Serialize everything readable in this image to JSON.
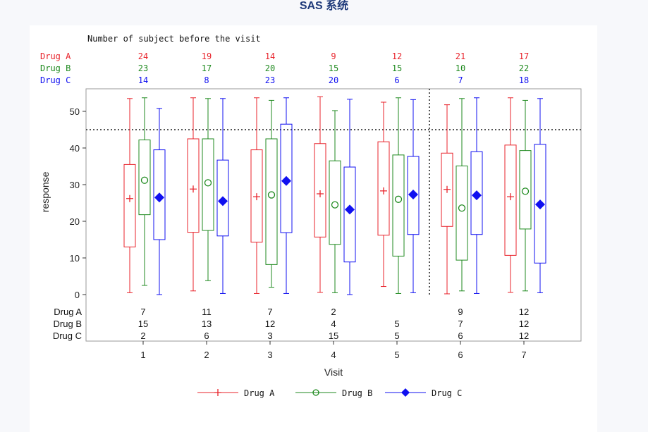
{
  "page": {
    "title": "SAS 系统"
  },
  "chart_data": {
    "type": "box",
    "header_label": "Number of subject before the visit",
    "xlabel": "Visit",
    "ylabel": "response",
    "categories": [
      "1",
      "2",
      "3",
      "4",
      "5",
      "6",
      "7"
    ],
    "ylim": [
      0,
      57
    ],
    "yticks": [
      0,
      10,
      20,
      30,
      40,
      50
    ],
    "reference_line_y": 45,
    "reference_line_x_between": [
      "5",
      "6"
    ],
    "series": [
      {
        "name": "Drug A",
        "color": "#e8232b",
        "marker": "plus",
        "boxes": [
          {
            "min": 0.5,
            "q1": 13,
            "median": 26,
            "q3": 35.5,
            "max": 53.5,
            "mean": 26.2
          },
          {
            "min": 1,
            "q1": 17,
            "median": 29,
            "q3": 42.5,
            "max": 53.7,
            "mean": 28.8
          },
          {
            "min": 0.3,
            "q1": 14.3,
            "median": 27,
            "q3": 39.5,
            "max": 53.7,
            "mean": 26.7
          },
          {
            "min": 0.6,
            "q1": 15.7,
            "median": 27.5,
            "q3": 41.2,
            "max": 54,
            "mean": 27.5
          },
          {
            "min": 2.2,
            "q1": 16.2,
            "median": 28.5,
            "q3": 41.7,
            "max": 52.5,
            "mean": 28.3
          },
          {
            "min": 0.2,
            "q1": 18.6,
            "median": 29,
            "q3": 38.6,
            "max": 51.8,
            "mean": 28.7
          },
          {
            "min": 0.6,
            "q1": 10.7,
            "median": 26.8,
            "q3": 40.8,
            "max": 53.7,
            "mean": 26.7
          }
        ]
      },
      {
        "name": "Drug B",
        "color": "#1f8a1f",
        "marker": "circle",
        "boxes": [
          {
            "min": 2.5,
            "q1": 21.8,
            "median": 31,
            "q3": 42.2,
            "max": 53.7,
            "mean": 31.2
          },
          {
            "min": 3.8,
            "q1": 17.5,
            "median": 30.5,
            "q3": 42.5,
            "max": 53.5,
            "mean": 30.5
          },
          {
            "min": 2,
            "q1": 8.2,
            "median": 27,
            "q3": 42.5,
            "max": 53,
            "mean": 27.2
          },
          {
            "min": 0.5,
            "q1": 13.7,
            "median": 24.5,
            "q3": 36.5,
            "max": 50.2,
            "mean": 24.5
          },
          {
            "min": 0.3,
            "q1": 10.5,
            "median": 26,
            "q3": 38.1,
            "max": 53.7,
            "mean": 26
          },
          {
            "min": 1,
            "q1": 9.4,
            "median": 23.5,
            "q3": 35.1,
            "max": 53.5,
            "mean": 23.6
          },
          {
            "min": 1,
            "q1": 17.9,
            "median": 28,
            "q3": 39.3,
            "max": 53,
            "mean": 28.2
          }
        ]
      },
      {
        "name": "Drug C",
        "color": "#1010f0",
        "marker": "diamond",
        "boxes": [
          {
            "min": 0,
            "q1": 15,
            "median": 26.5,
            "q3": 39.5,
            "max": 50.8,
            "mean": 26.5
          },
          {
            "min": 0.3,
            "q1": 16,
            "median": 25.5,
            "q3": 36.7,
            "max": 53.5,
            "mean": 25.5
          },
          {
            "min": 0.3,
            "q1": 16.9,
            "median": 31,
            "q3": 46.5,
            "max": 53.7,
            "mean": 31
          },
          {
            "min": 0,
            "q1": 8.9,
            "median": 23.2,
            "q3": 34.8,
            "max": 53.3,
            "mean": 23.2
          },
          {
            "min": 0.5,
            "q1": 16.4,
            "median": 27.3,
            "q3": 37.7,
            "max": 53.2,
            "mean": 27.3
          },
          {
            "min": 0.3,
            "q1": 16.4,
            "median": 27,
            "q3": 39,
            "max": 53.7,
            "mean": 27.1
          },
          {
            "min": 0.5,
            "q1": 8.6,
            "median": 24.6,
            "q3": 41,
            "max": 53.5,
            "mean": 24.6
          }
        ]
      }
    ],
    "header_counts": [
      {
        "name": "Drug A",
        "color": "#e8232b",
        "values": [
          "24",
          "19",
          "14",
          "9",
          "12",
          "21",
          "17"
        ]
      },
      {
        "name": "Drug B",
        "color": "#1f8a1f",
        "values": [
          "23",
          "17",
          "20",
          "15",
          "15",
          "10",
          "22"
        ]
      },
      {
        "name": "Drug C",
        "color": "#1010f0",
        "values": [
          "14",
          "8",
          "23",
          "20",
          "6",
          "7",
          "18"
        ]
      }
    ],
    "inner_counts": [
      {
        "name": "Drug A",
        "values": [
          "7",
          "11",
          "7",
          "2",
          "",
          "9",
          "12"
        ]
      },
      {
        "name": "Drug B",
        "values": [
          "15",
          "13",
          "12",
          "4",
          "5",
          "7",
          "12"
        ]
      },
      {
        "name": "Drug C",
        "values": [
          "2",
          "6",
          "3",
          "15",
          "5",
          "6",
          "12"
        ]
      }
    ],
    "legend": {
      "position": "bottom",
      "items": [
        {
          "name": "Drug A",
          "color": "#e8232b",
          "marker": "plus"
        },
        {
          "name": "Drug B",
          "color": "#1f8a1f",
          "marker": "circle"
        },
        {
          "name": "Drug C",
          "color": "#1010f0",
          "marker": "diamond"
        }
      ]
    }
  }
}
